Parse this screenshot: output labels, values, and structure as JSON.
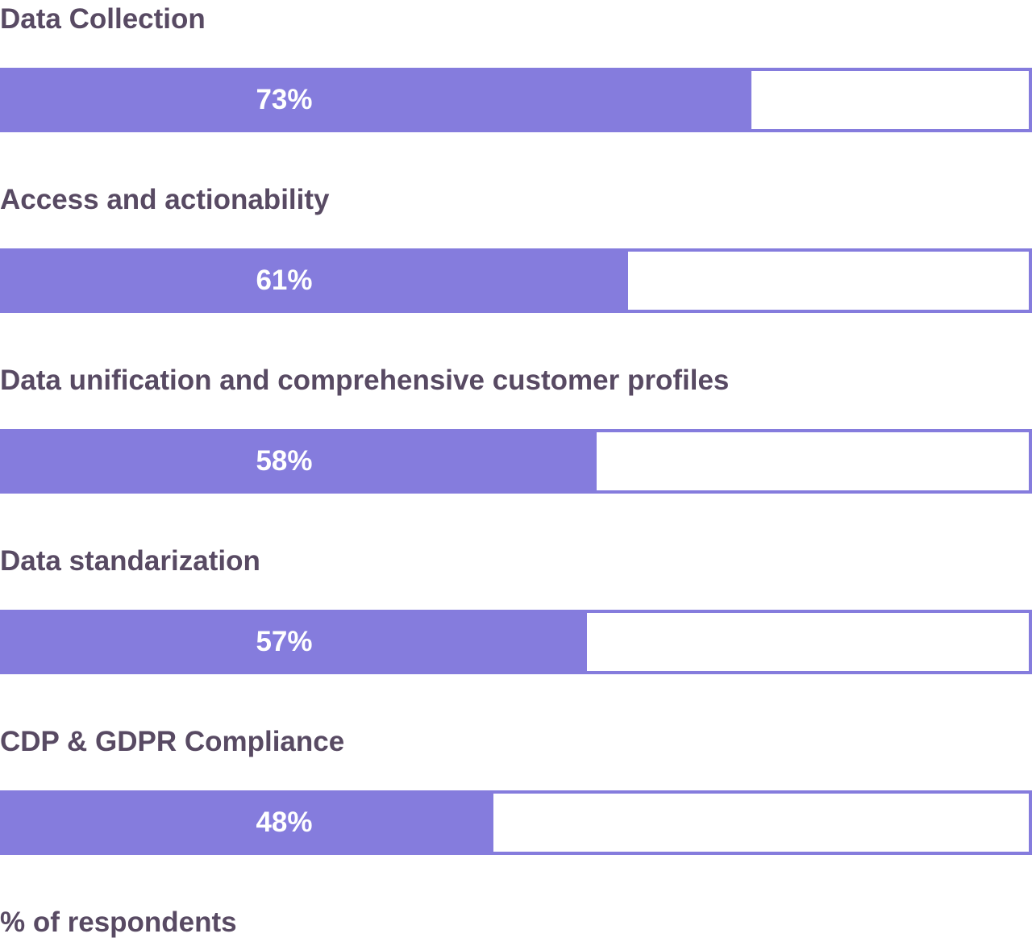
{
  "chart_data": {
    "type": "bar",
    "orientation": "horizontal",
    "categories": [
      "Data Collection",
      "Access and actionability",
      "Data unification and comprehensive customer profiles",
      "Data standarization",
      "CDP & GDPR Compliance"
    ],
    "values": [
      73,
      61,
      58,
      57,
      48
    ],
    "value_labels": [
      "73%",
      "61%",
      "58%",
      "57%",
      "48%"
    ],
    "xlim": [
      0,
      100
    ],
    "xlabel": "% of respondents",
    "grid": false,
    "legend": "none"
  },
  "colors": {
    "bar_fill": "#857cdd",
    "bar_border": "#857cdd",
    "label_text": "#584a63",
    "value_text": "#ffffff",
    "background": "#ffffff"
  }
}
